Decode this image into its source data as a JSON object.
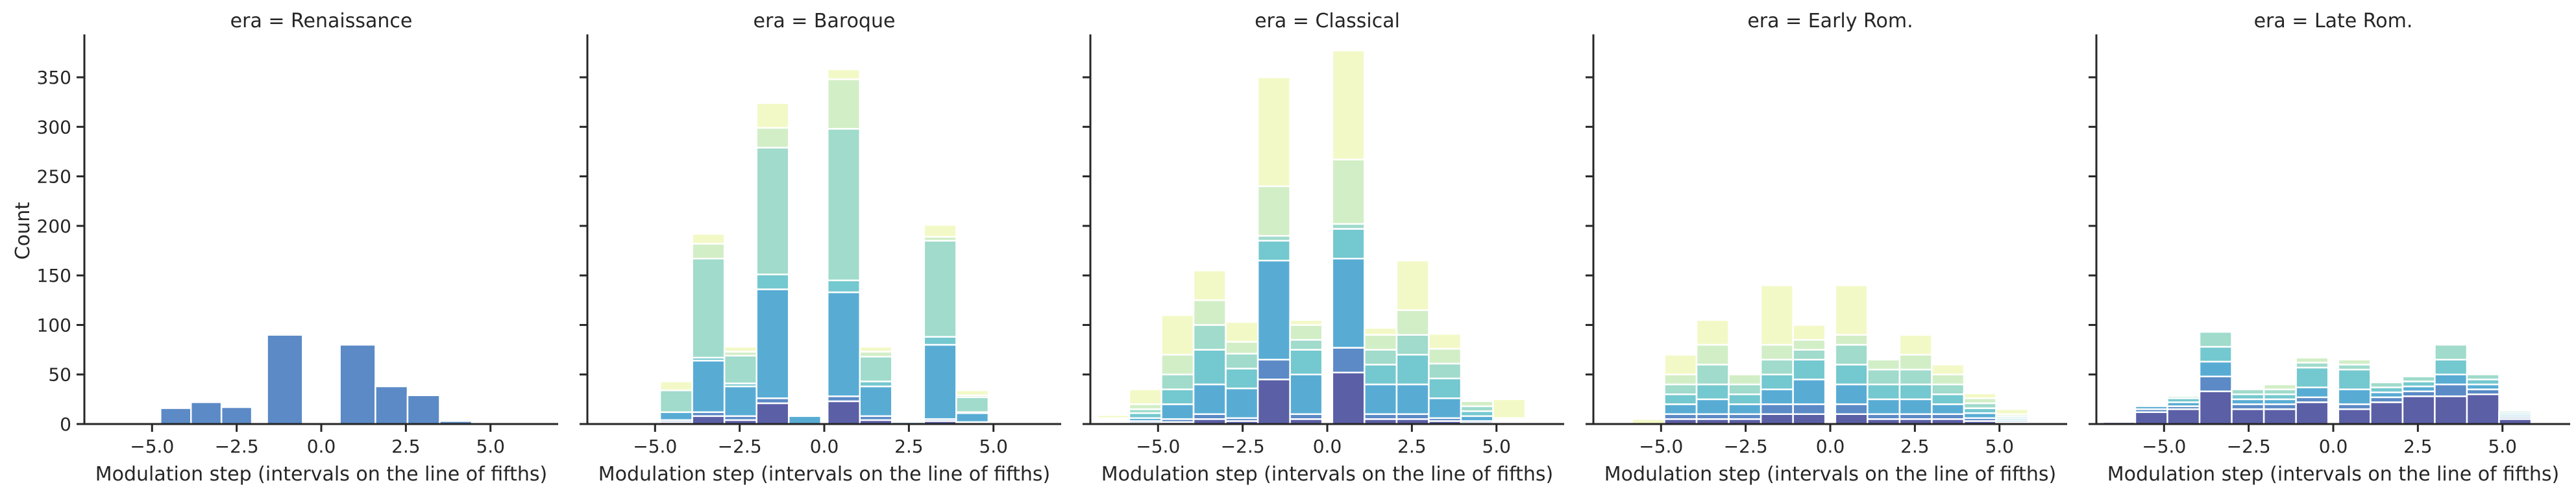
{
  "chart_data": {
    "type": "bar",
    "stacked": true,
    "ylabel": "Count",
    "xlabel": "Modulation step (intervals on the line of fifths)",
    "xlim": [
      -7,
      7
    ],
    "ylim": [
      0,
      390
    ],
    "x_ticks": [
      -5.0,
      -2.5,
      0.0,
      2.5,
      5.0
    ],
    "x_tick_labels": [
      "−5.0",
      "−2.5",
      "0.0",
      "2.5",
      "5.0"
    ],
    "y_ticks": [
      0,
      50,
      100,
      150,
      200,
      250,
      300,
      350
    ],
    "y_tick_labels": [
      "0",
      "50",
      "100",
      "150",
      "200",
      "250",
      "300",
      "350"
    ],
    "grid": false,
    "legend": "none",
    "layer_colors": [
      "#5b5fa6",
      "#5b8ac6",
      "#58acd4",
      "#74c8cf",
      "#a0dbcb",
      "#d2eec6",
      "#f3f9c6"
    ],
    "panels": [
      {
        "title": "era = Renaissance",
        "bins": [
          {
            "x0": -4.75,
            "x1": -3.85,
            "layers": [
              0,
              16
            ]
          },
          {
            "x0": -3.85,
            "x1": -2.95,
            "layers": [
              0,
              22
            ]
          },
          {
            "x0": -2.95,
            "x1": -2.05,
            "layers": [
              0,
              17
            ]
          },
          {
            "x0": -1.6,
            "x1": -0.55,
            "layers": [
              0,
              90
            ]
          },
          {
            "x0": 0.55,
            "x1": 1.6,
            "layers": [
              0,
              80
            ]
          },
          {
            "x0": 1.6,
            "x1": 2.55,
            "layers": [
              0,
              38
            ]
          },
          {
            "x0": 2.55,
            "x1": 3.5,
            "layers": [
              0,
              29
            ]
          },
          {
            "x0": 3.5,
            "x1": 4.45,
            "layers": [
              0,
              3
            ]
          }
        ]
      },
      {
        "title": "era = Baroque",
        "bins": [
          {
            "x0": -4.85,
            "x1": -3.9,
            "layers": [
              2,
              2,
              8,
              0,
              22,
              0,
              9
            ]
          },
          {
            "x0": -3.9,
            "x1": -2.95,
            "layers": [
              8,
              4,
              52,
              3,
              100,
              15,
              10
            ]
          },
          {
            "x0": -2.95,
            "x1": -2.0,
            "layers": [
              4,
              4,
              30,
              3,
              28,
              4,
              5
            ]
          },
          {
            "x0": -2.0,
            "x1": -1.05,
            "layers": [
              21,
              5,
              110,
              15,
              128,
              20,
              25
            ]
          },
          {
            "x0": -1.05,
            "x1": -0.1,
            "layers": [
              0,
              0,
              8,
              0,
              0,
              0,
              0
            ]
          },
          {
            "x0": 0.1,
            "x1": 1.05,
            "layers": [
              23,
              5,
              105,
              12,
              153,
              50,
              10
            ]
          },
          {
            "x0": 1.05,
            "x1": 2.0,
            "layers": [
              4,
              4,
              30,
              5,
              25,
              5,
              5
            ]
          },
          {
            "x0": 2.0,
            "x1": 2.95,
            "layers": [
              0,
              0,
              2,
              0,
              0,
              0,
              0
            ]
          },
          {
            "x0": 2.95,
            "x1": 3.9,
            "layers": [
              3,
              2,
              75,
              8,
              97,
              4,
              12
            ]
          },
          {
            "x0": 3.9,
            "x1": 4.85,
            "layers": [
              1,
              1,
              9,
              1,
              15,
              2,
              5
            ]
          }
        ]
      },
      {
        "title": "era = Classical",
        "bins": [
          {
            "x0": -6.8,
            "x1": -5.85,
            "layers": [
              1,
              1,
              1,
              1,
              1,
              1,
              3
            ]
          },
          {
            "x0": -5.85,
            "x1": -4.9,
            "layers": [
              1,
              2,
              3,
              5,
              4,
              5,
              15
            ]
          },
          {
            "x0": -4.9,
            "x1": -3.95,
            "layers": [
              2,
              3,
              15,
              15,
              15,
              20,
              40
            ]
          },
          {
            "x0": -3.95,
            "x1": -3.0,
            "layers": [
              5,
              5,
              30,
              35,
              25,
              25,
              30
            ]
          },
          {
            "x0": -3.0,
            "x1": -2.05,
            "layers": [
              3,
              3,
              30,
              20,
              15,
              12,
              20
            ]
          },
          {
            "x0": -2.05,
            "x1": -1.1,
            "layers": [
              45,
              20,
              100,
              20,
              5,
              50,
              110
            ]
          },
          {
            "x0": -1.1,
            "x1": -0.15,
            "layers": [
              5,
              5,
              40,
              25,
              10,
              15,
              5
            ]
          },
          {
            "x0": 0.15,
            "x1": 1.1,
            "layers": [
              52,
              25,
              90,
              30,
              5,
              65,
              110
            ]
          },
          {
            "x0": 1.1,
            "x1": 2.05,
            "layers": [
              5,
              5,
              30,
              20,
              15,
              15,
              7
            ]
          },
          {
            "x0": 2.05,
            "x1": 3.0,
            "layers": [
              5,
              5,
              30,
              30,
              20,
              25,
              50
            ]
          },
          {
            "x0": 3.0,
            "x1": 3.95,
            "layers": [
              3,
              3,
              20,
              20,
              15,
              15,
              15
            ]
          },
          {
            "x0": 3.95,
            "x1": 4.9,
            "layers": [
              1,
              2,
              5,
              5,
              5,
              5,
              0
            ]
          },
          {
            "x0": 4.9,
            "x1": 5.85,
            "layers": [
              1,
              1,
              1,
              1,
              1,
              1,
              19
            ]
          }
        ]
      },
      {
        "title": "era = Early Rom.",
        "bins": [
          {
            "x0": -5.85,
            "x1": -4.9,
            "layers": [
              0,
              0,
              0,
              0,
              0,
              0,
              5
            ]
          },
          {
            "x0": -4.9,
            "x1": -3.95,
            "layers": [
              5,
              5,
              10,
              10,
              10,
              10,
              20
            ]
          },
          {
            "x0": -3.95,
            "x1": -3.0,
            "layers": [
              5,
              5,
              15,
              15,
              20,
              20,
              25
            ]
          },
          {
            "x0": -3.0,
            "x1": -2.05,
            "layers": [
              5,
              5,
              10,
              10,
              10,
              10,
              0
            ]
          },
          {
            "x0": -2.05,
            "x1": -1.1,
            "layers": [
              10,
              10,
              15,
              15,
              15,
              15,
              60
            ]
          },
          {
            "x0": -1.1,
            "x1": -0.15,
            "layers": [
              10,
              10,
              25,
              20,
              10,
              10,
              15
            ]
          },
          {
            "x0": 0.15,
            "x1": 1.1,
            "layers": [
              10,
              10,
              20,
              20,
              20,
              10,
              50
            ]
          },
          {
            "x0": 1.1,
            "x1": 2.05,
            "layers": [
              5,
              5,
              15,
              15,
              15,
              10,
              0
            ]
          },
          {
            "x0": 2.05,
            "x1": 3.0,
            "layers": [
              5,
              5,
              15,
              15,
              15,
              15,
              20
            ]
          },
          {
            "x0": 3.0,
            "x1": 3.95,
            "layers": [
              5,
              5,
              10,
              10,
              10,
              10,
              10
            ]
          },
          {
            "x0": 3.95,
            "x1": 4.9,
            "layers": [
              3,
              3,
              5,
              5,
              5,
              5,
              5
            ]
          },
          {
            "x0": 4.9,
            "x1": 5.85,
            "layers": [
              1,
              1,
              2,
              2,
              2,
              2,
              5
            ]
          }
        ]
      },
      {
        "title": "era = Late Rom.",
        "bins": [
          {
            "x0": -6.8,
            "x1": -5.85,
            "layers": [
              2,
              0,
              0,
              0,
              0,
              0,
              0
            ]
          },
          {
            "x0": -5.85,
            "x1": -4.9,
            "layers": [
              12,
              3,
              3,
              0,
              0,
              0,
              0
            ]
          },
          {
            "x0": -4.9,
            "x1": -3.95,
            "layers": [
              15,
              3,
              4,
              4,
              2,
              0,
              0
            ]
          },
          {
            "x0": -3.95,
            "x1": -3.0,
            "layers": [
              33,
              15,
              15,
              15,
              15,
              0,
              0
            ]
          },
          {
            "x0": -3.0,
            "x1": -2.05,
            "layers": [
              15,
              5,
              5,
              5,
              5,
              0,
              0
            ]
          },
          {
            "x0": -2.05,
            "x1": -1.1,
            "layers": [
              15,
              5,
              5,
              5,
              5,
              5,
              0
            ]
          },
          {
            "x0": -1.1,
            "x1": -0.15,
            "layers": [
              22,
              5,
              10,
              20,
              5,
              5,
              0
            ]
          },
          {
            "x0": 0.15,
            "x1": 1.1,
            "layers": [
              15,
              5,
              15,
              20,
              5,
              5,
              0
            ]
          },
          {
            "x0": 1.1,
            "x1": 2.05,
            "layers": [
              22,
              5,
              5,
              5,
              5,
              0,
              0
            ]
          },
          {
            "x0": 2.05,
            "x1": 3.0,
            "layers": [
              28,
              5,
              5,
              5,
              5,
              0,
              0
            ]
          },
          {
            "x0": 3.0,
            "x1": 3.95,
            "layers": [
              28,
              12,
              10,
              15,
              15,
              0,
              0
            ]
          },
          {
            "x0": 3.95,
            "x1": 4.9,
            "layers": [
              30,
              5,
              5,
              5,
              5,
              0,
              0
            ]
          },
          {
            "x0": 4.9,
            "x1": 5.85,
            "layers": [
              5,
              2,
              2,
              2,
              2,
              0,
              0
            ]
          }
        ]
      }
    ]
  }
}
